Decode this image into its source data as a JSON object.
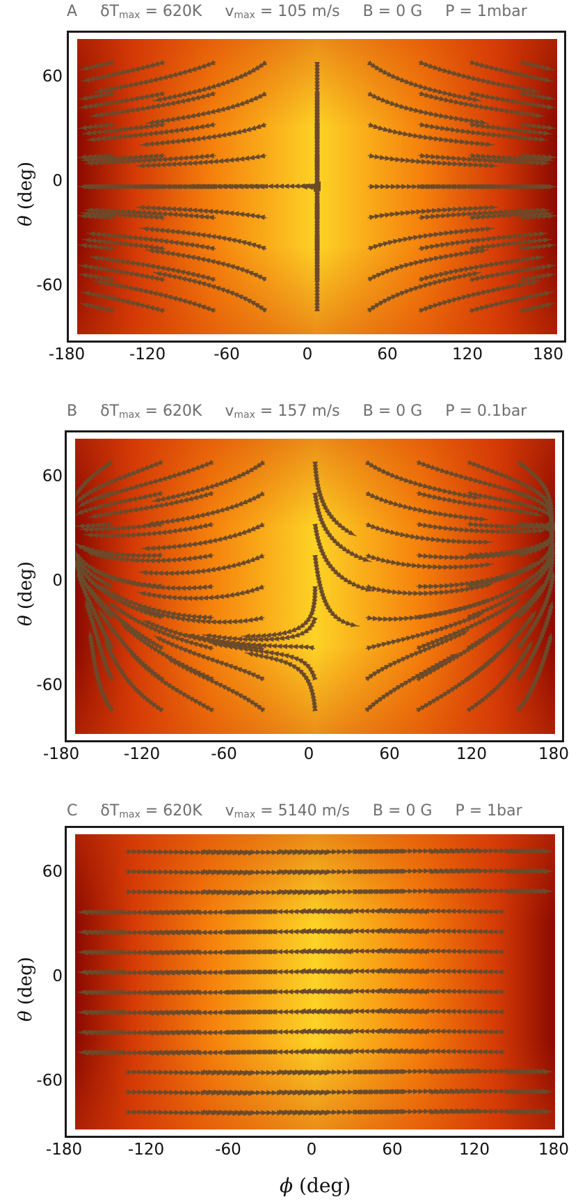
{
  "chart_data": [
    {
      "type": "heatmap",
      "panel_label": "A",
      "title_parts": {
        "dT": "620K",
        "vmax": "105 m/s",
        "B": "B = 0 G",
        "P": "P = 1mbar"
      },
      "x_ticks": [
        "-180",
        "-120",
        "-60",
        "0",
        "60",
        "120",
        "180"
      ],
      "y_ticks": [
        "60",
        "0",
        "-60"
      ],
      "x_range": [
        -180,
        180
      ],
      "y_range": [
        -90,
        90
      ],
      "ylabel": "(deg)",
      "ylabel_symbol": "θ",
      "colormap": [
        "#8b0a00",
        "#d43a06",
        "#f5800c",
        "#fdd326"
      ],
      "overlay": "streamlines",
      "flow_pattern": "stagnation"
    },
    {
      "type": "heatmap",
      "panel_label": "B",
      "title_parts": {
        "dT": "620K",
        "vmax": "157 m/s",
        "B": "B = 0 G",
        "P": "P = 0.1bar"
      },
      "x_ticks": [
        "-180",
        "-120",
        "-60",
        "0",
        "60",
        "120",
        "180"
      ],
      "y_ticks": [
        "60",
        "0",
        "-60"
      ],
      "x_range": [
        -180,
        180
      ],
      "y_range": [
        -90,
        90
      ],
      "ylabel": "(deg)",
      "ylabel_symbol": "θ",
      "colormap": [
        "#8b0a00",
        "#d43a06",
        "#f5800c",
        "#fdd326"
      ],
      "overlay": "streamlines",
      "flow_pattern": "vortices"
    },
    {
      "type": "heatmap",
      "panel_label": "C",
      "title_parts": {
        "dT": "620K",
        "vmax": "5140 m/s",
        "B": "B = 0 G",
        "P": "P = 1bar"
      },
      "x_ticks": [
        "-180",
        "-120",
        "-60",
        "0",
        "60",
        "120",
        "180"
      ],
      "y_ticks": [
        "60",
        "0",
        "-60"
      ],
      "x_range": [
        -180,
        180
      ],
      "y_range": [
        -90,
        90
      ],
      "ylabel": "(deg)",
      "ylabel_symbol": "θ",
      "xlabel": "(deg)",
      "xlabel_symbol": "ϕ",
      "colormap": [
        "#8b0a00",
        "#d43a06",
        "#f5800c",
        "#fdd326"
      ],
      "overlay": "streamlines",
      "flow_pattern": "zonal"
    }
  ]
}
